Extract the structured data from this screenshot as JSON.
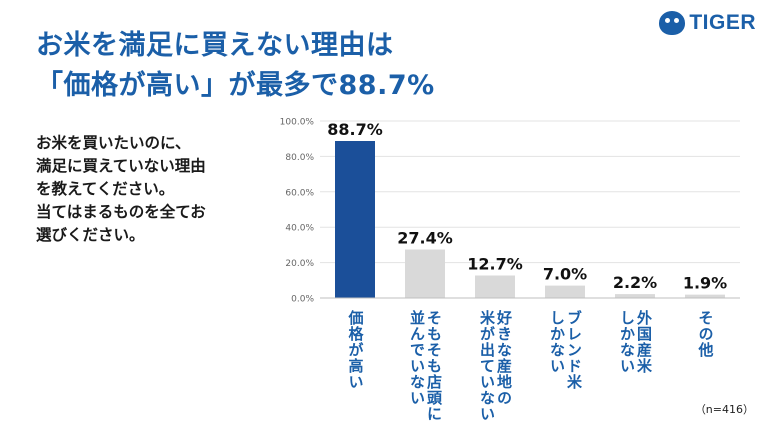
{
  "title": {
    "line1": "お米を満足に買えない理由は",
    "line2": "「価格が高い」が最多で88.7%"
  },
  "logo": {
    "text": "TIGER",
    "icon": "tiger-head-icon",
    "color": "#1b5fa8"
  },
  "question": {
    "lines": [
      "お米を買いたいのに、",
      "満足に買えていない理由",
      "を教えてください。",
      "当てはまるものを全てお",
      "選びください。"
    ]
  },
  "note": "（n=416）",
  "colors": {
    "accent": "#1b5fa8",
    "highlight_bar": "#1b4f99",
    "other_bar": "#d9d9d9"
  },
  "chart_data": {
    "type": "bar",
    "categories": [
      "価格が高い",
      "そもそも店頭に\n並んでいない",
      "好きな産地の\n米が出ていない",
      "ブレンド米\nしかない",
      "外国産米\nしかない",
      "その他"
    ],
    "values": [
      88.7,
      27.4,
      12.7,
      7.0,
      2.2,
      1.9
    ],
    "value_labels": [
      "88.7%",
      "27.4%",
      "12.7%",
      "7.0%",
      "2.2%",
      "1.9%"
    ],
    "y_ticks": [
      "0.0%",
      "20.0%",
      "40.0%",
      "60.0%",
      "80.0%",
      "100.0%"
    ],
    "ylim": [
      0,
      100
    ],
    "grid": true,
    "highlight_index": 0
  }
}
